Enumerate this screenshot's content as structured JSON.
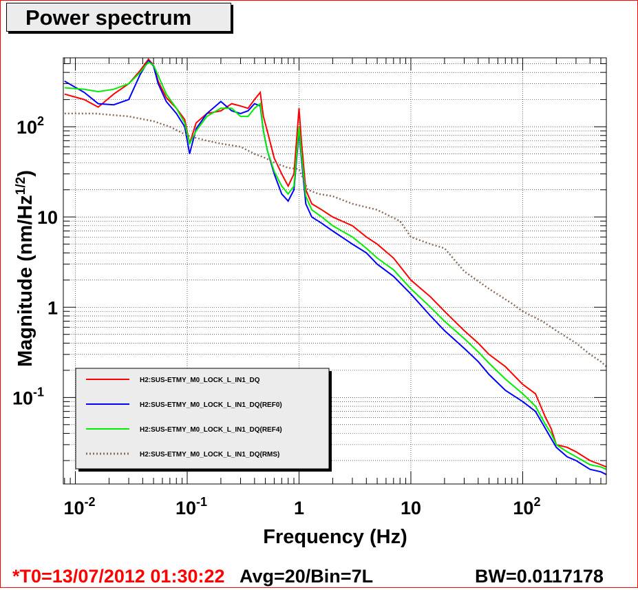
{
  "title": "Power spectrum",
  "footer": {
    "t0": "*T0=13/07/2012 01:30:22",
    "avg": "Avg=20/Bin=7L",
    "bw": "BW=0.0117178"
  },
  "colors": {
    "frame": "#ff0000",
    "t0_text": "#ff0000",
    "live": "#ff0000",
    "ref0": "#0000ff",
    "ref4": "#00ee00",
    "rms": "#8b6b5a"
  },
  "chart_data": {
    "type": "line",
    "xlabel": "Frequency (Hz)",
    "ylabel_main": "Magnitude (nm/Hz",
    "ylabel_exponent": "1/2",
    "ylabel_close": ")",
    "xscale": "log",
    "yscale": "log",
    "xlim": [
      0.0078,
      560
    ],
    "ylim": [
      0.011,
      580
    ],
    "grid": true,
    "legend_position": "bottom-left",
    "x_ticks": [
      {
        "value": 0.01,
        "base": "10",
        "exp": "-2"
      },
      {
        "value": 0.1,
        "base": "10",
        "exp": "-1"
      },
      {
        "value": 1,
        "base": "1",
        "exp": ""
      },
      {
        "value": 10,
        "base": "10",
        "exp": ""
      },
      {
        "value": 100,
        "base": "10",
        "exp": "2"
      }
    ],
    "y_ticks": [
      {
        "value": 0.1,
        "base": "10",
        "exp": "-1"
      },
      {
        "value": 1,
        "base": "1",
        "exp": ""
      },
      {
        "value": 10,
        "base": "10",
        "exp": ""
      },
      {
        "value": 100,
        "base": "10",
        "exp": "2"
      }
    ],
    "series": [
      {
        "name": "H2:SUS-ETMY_M0_LOCK_L_IN1_DQ",
        "color": "#ff0000",
        "style": "solid",
        "x": [
          0.008,
          0.012,
          0.016,
          0.022,
          0.03,
          0.038,
          0.045,
          0.05,
          0.055,
          0.065,
          0.08,
          0.095,
          0.105,
          0.12,
          0.15,
          0.2,
          0.25,
          0.3,
          0.35,
          0.4,
          0.45,
          0.48,
          0.52,
          0.6,
          0.7,
          0.8,
          0.9,
          1.0,
          1.05,
          1.15,
          1.3,
          1.6,
          2,
          3,
          4,
          5,
          7,
          10,
          15,
          20,
          30,
          40,
          50,
          70,
          100,
          130,
          160,
          180,
          200,
          250,
          300,
          400,
          500,
          560
        ],
        "y": [
          230,
          200,
          165,
          230,
          300,
          420,
          560,
          480,
          320,
          210,
          160,
          120,
          65,
          110,
          140,
          150,
          180,
          170,
          160,
          200,
          240,
          130,
          90,
          45,
          30,
          22,
          30,
          160,
          70,
          20,
          14,
          12,
          10,
          8,
          6,
          5,
          3.5,
          2,
          1.3,
          0.9,
          0.55,
          0.4,
          0.3,
          0.22,
          0.14,
          0.11,
          0.06,
          0.045,
          0.03,
          0.028,
          0.025,
          0.02,
          0.018,
          0.017
        ]
      },
      {
        "name": "H2:SUS-ETMY_M0_LOCK_L_IN1_DQ(REF0)",
        "color": "#0000ff",
        "style": "solid",
        "x": [
          0.008,
          0.012,
          0.016,
          0.022,
          0.03,
          0.038,
          0.045,
          0.05,
          0.055,
          0.065,
          0.08,
          0.095,
          0.105,
          0.12,
          0.15,
          0.2,
          0.25,
          0.3,
          0.35,
          0.4,
          0.45,
          0.48,
          0.52,
          0.6,
          0.7,
          0.8,
          0.9,
          1.0,
          1.05,
          1.15,
          1.3,
          1.6,
          2,
          3,
          4,
          5,
          7,
          10,
          15,
          20,
          30,
          40,
          50,
          70,
          100,
          130,
          160,
          180,
          200,
          250,
          300,
          400,
          500,
          560
        ],
        "y": [
          320,
          240,
          180,
          175,
          200,
          380,
          540,
          470,
          300,
          190,
          140,
          100,
          50,
          95,
          140,
          190,
          150,
          140,
          150,
          180,
          170,
          90,
          55,
          30,
          18,
          15,
          20,
          90,
          45,
          14,
          10,
          8.5,
          7,
          5,
          4,
          3,
          2.2,
          1.4,
          0.8,
          0.55,
          0.35,
          0.25,
          0.18,
          0.12,
          0.09,
          0.07,
          0.045,
          0.035,
          0.028,
          0.022,
          0.02,
          0.016,
          0.015,
          0.014
        ]
      },
      {
        "name": "H2:SUS-ETMY_M0_LOCK_L_IN1_DQ(REF4)",
        "color": "#00ee00",
        "style": "solid",
        "x": [
          0.008,
          0.012,
          0.016,
          0.022,
          0.03,
          0.038,
          0.045,
          0.05,
          0.055,
          0.065,
          0.08,
          0.095,
          0.105,
          0.12,
          0.15,
          0.2,
          0.25,
          0.3,
          0.35,
          0.4,
          0.45,
          0.48,
          0.52,
          0.6,
          0.7,
          0.8,
          0.9,
          1.0,
          1.05,
          1.15,
          1.3,
          1.6,
          2,
          3,
          4,
          5,
          7,
          10,
          15,
          20,
          30,
          40,
          50,
          70,
          100,
          130,
          160,
          180,
          200,
          250,
          300,
          400,
          500,
          560
        ],
        "y": [
          270,
          260,
          245,
          260,
          300,
          400,
          520,
          480,
          370,
          230,
          160,
          110,
          65,
          90,
          130,
          160,
          160,
          130,
          130,
          160,
          180,
          90,
          55,
          32,
          22,
          18,
          22,
          100,
          50,
          17,
          12,
          10,
          8,
          6,
          4.5,
          3.5,
          2.6,
          1.6,
          1.0,
          0.7,
          0.45,
          0.32,
          0.24,
          0.16,
          0.11,
          0.08,
          0.05,
          0.04,
          0.03,
          0.025,
          0.022,
          0.018,
          0.017,
          0.016
        ]
      },
      {
        "name": "H2:SUS-ETMY_M0_LOCK_L_IN1_DQ(RMS)",
        "color": "#8b6b5a",
        "style": "dotted",
        "x": [
          0.008,
          0.015,
          0.03,
          0.05,
          0.07,
          0.1,
          0.15,
          0.2,
          0.3,
          0.4,
          0.5,
          0.6,
          0.8,
          1.0,
          1.2,
          1.5,
          2,
          3,
          5,
          8,
          10,
          15,
          20,
          30,
          50,
          80,
          100,
          150,
          200,
          300,
          400,
          500,
          560
        ],
        "y": [
          140,
          140,
          130,
          115,
          100,
          80,
          70,
          65,
          60,
          50,
          45,
          40,
          35,
          34,
          20,
          18,
          17,
          14,
          12,
          9,
          6,
          5,
          4.5,
          2.5,
          1.6,
          1.1,
          0.9,
          0.7,
          0.55,
          0.4,
          0.3,
          0.25,
          0.22
        ]
      }
    ]
  }
}
